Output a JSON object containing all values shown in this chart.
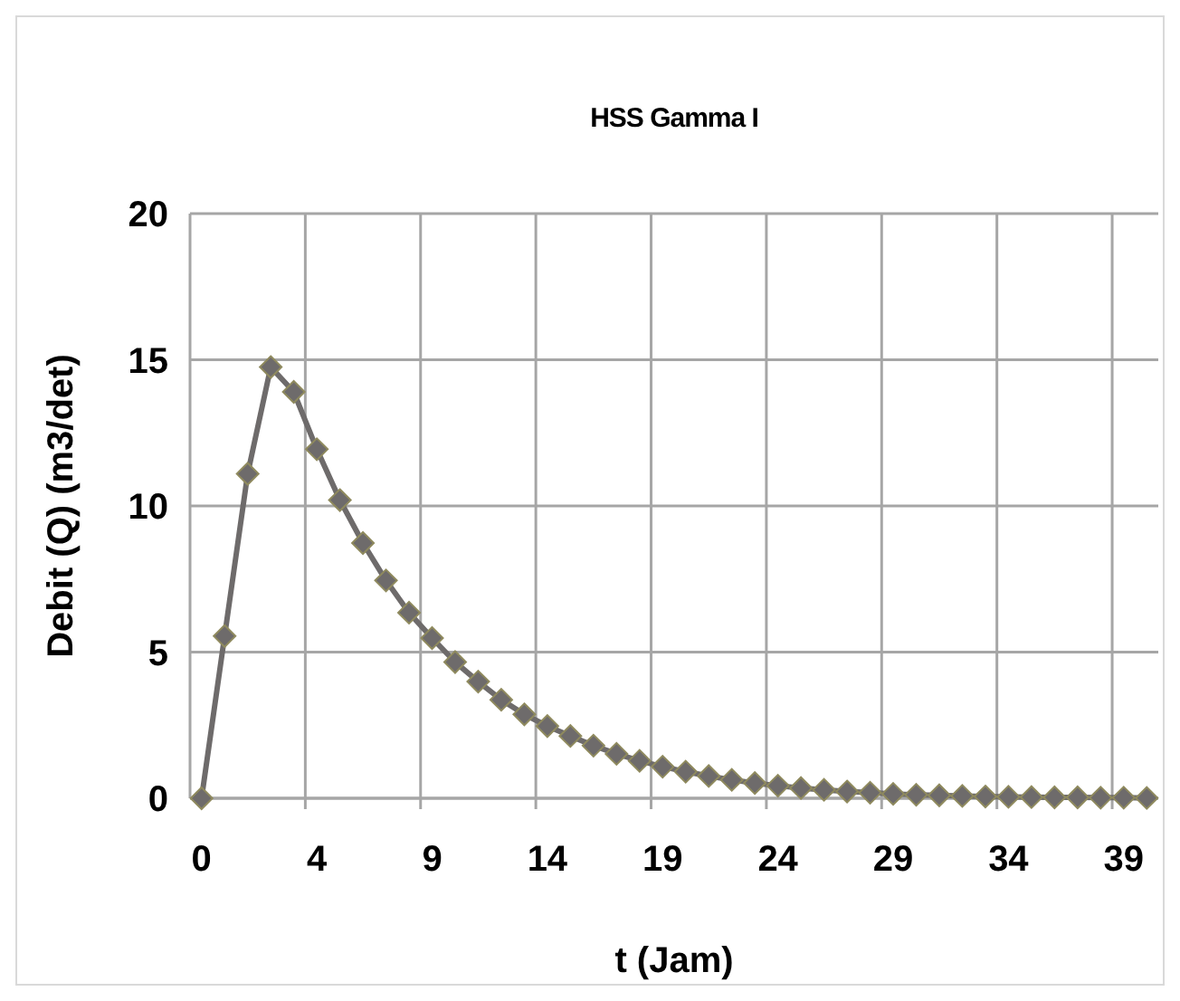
{
  "chart_data": {
    "type": "line",
    "title": "HSS Gamma I",
    "xlabel": "t (Jam)",
    "ylabel": "Debit (Q) (m3/det)",
    "categories": [
      "0",
      null,
      null,
      null,
      null,
      "4",
      null,
      null,
      null,
      null,
      "9",
      null,
      null,
      null,
      null,
      "14",
      null,
      null,
      null,
      null,
      "19",
      null,
      null,
      null,
      null,
      "24",
      null,
      null,
      null,
      null,
      "29",
      null,
      null,
      null,
      null,
      "34",
      null,
      null,
      null,
      null,
      "39",
      null
    ],
    "series": [
      {
        "color": "#6e6b6b",
        "values": [
          0,
          5.55,
          11.1,
          14.75,
          13.9,
          11.94,
          10.2,
          8.73,
          7.45,
          6.35,
          5.48,
          4.66,
          3.99,
          3.37,
          2.87,
          2.47,
          2.13,
          1.8,
          1.52,
          1.28,
          1.08,
          0.91,
          0.76,
          0.63,
          0.52,
          0.43,
          0.35,
          0.29,
          0.23,
          0.19,
          0.15,
          0.12,
          0.1,
          0.08,
          0.06,
          0.05,
          0.04,
          0.03,
          0.03,
          0.02,
          0.02,
          0.01
        ]
      }
    ],
    "ylim": [
      0,
      20
    ],
    "yticks": [
      0,
      5,
      10,
      15,
      20
    ],
    "grid": true,
    "marker": "diamond",
    "line_style": "solid"
  }
}
